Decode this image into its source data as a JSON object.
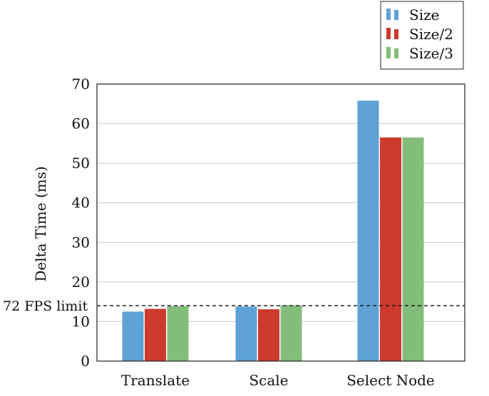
{
  "chart_data": {
    "type": "bar",
    "categories": [
      "Translate",
      "Scale",
      "Select Node"
    ],
    "series": [
      {
        "name": "Size",
        "values": [
          12.5,
          13.8,
          65.8
        ],
        "color": "#5fa2d4"
      },
      {
        "name": "Size/2",
        "values": [
          13.2,
          13.1,
          56.5
        ],
        "color": "#cc3a2e"
      },
      {
        "name": "Size/3",
        "values": [
          13.9,
          14.1,
          56.5
        ],
        "color": "#84bd7b"
      }
    ],
    "title": "",
    "xlabel": "",
    "ylabel": "Delta Time (ms)",
    "ylim": [
      0,
      70
    ],
    "yticks": [
      "0",
      "10",
      "20",
      "30",
      "40",
      "50",
      "60",
      "70"
    ],
    "grid": "horizontal",
    "legend_position": "top-right, outside plot",
    "reference_line": {
      "value": 14,
      "label": "72 FPS limit",
      "style": "dashed"
    }
  }
}
